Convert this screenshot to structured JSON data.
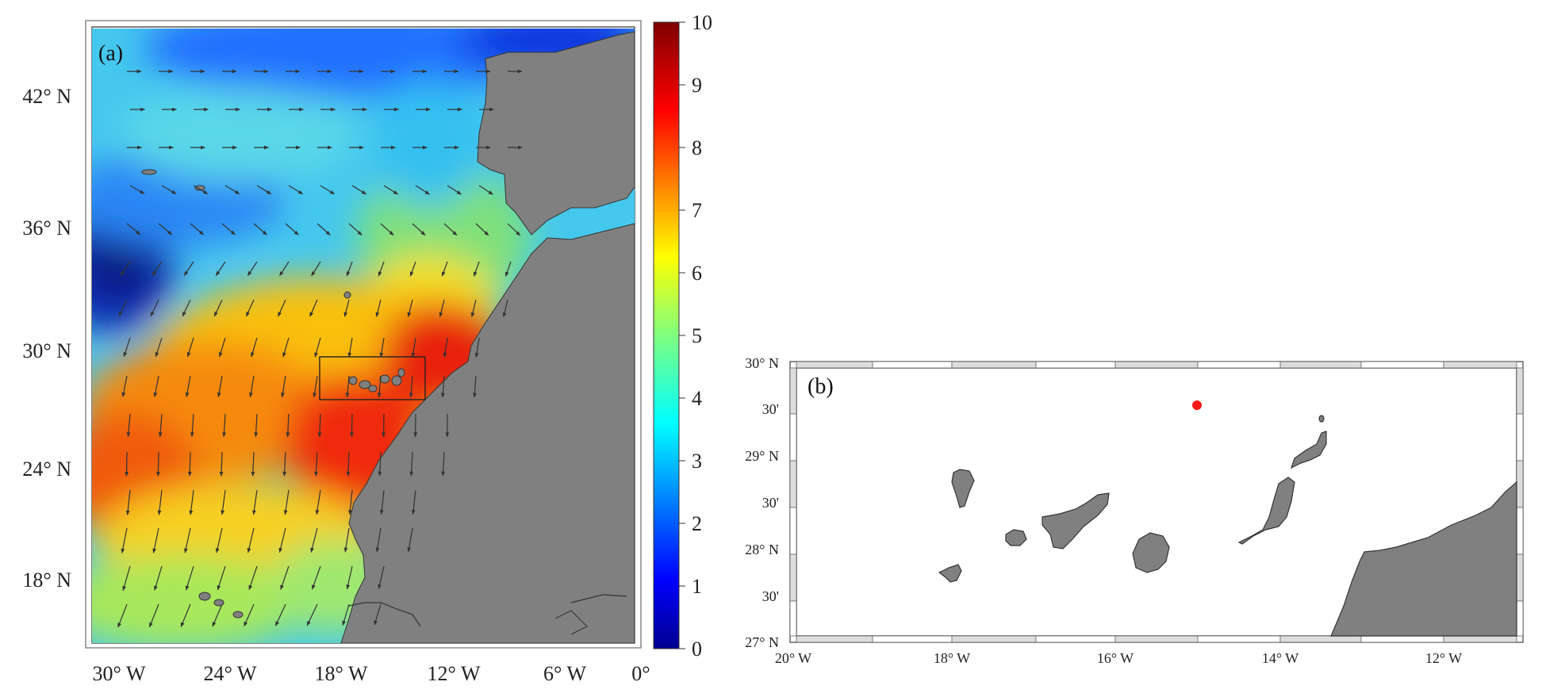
{
  "panel_a": {
    "label": "(a)",
    "lat_ticks": [
      "42° N",
      "36° N",
      "30° N",
      "24° N",
      "18° N"
    ],
    "lon_ticks": [
      "30° W",
      "24° W",
      "18° W",
      "12° W",
      "6° W",
      "0°"
    ],
    "colorbar": {
      "ticks": [
        "10",
        "9",
        "8",
        "7",
        "6",
        "5",
        "4",
        "3",
        "2",
        "1",
        "0"
      ],
      "range": [
        0,
        10
      ],
      "colormap": "jet"
    },
    "extent": {
      "lon": [
        -31,
        0
      ],
      "lat": [
        15,
        45
      ]
    },
    "land_color": "#808080",
    "arrow_color": "#333333",
    "study_box": {
      "lon": [
        -18.5,
        -13.2
      ],
      "lat": [
        27.4,
        29.7
      ]
    }
  },
  "panel_b": {
    "label": "(b)",
    "lat_ticks": [
      "30° N",
      "30'",
      "29° N",
      "30'",
      "28° N",
      "30'",
      "27° N"
    ],
    "lon_ticks": [
      "20° W",
      "18° W",
      "16° W",
      "14° W",
      "12° W"
    ],
    "extent": {
      "lon": [
        -20,
        -11
      ],
      "lat": [
        27,
        30
      ]
    },
    "land_color": "#808080",
    "marker": {
      "lon": -15.0,
      "lat": 29.55,
      "color": "#ff1a1a"
    }
  }
}
